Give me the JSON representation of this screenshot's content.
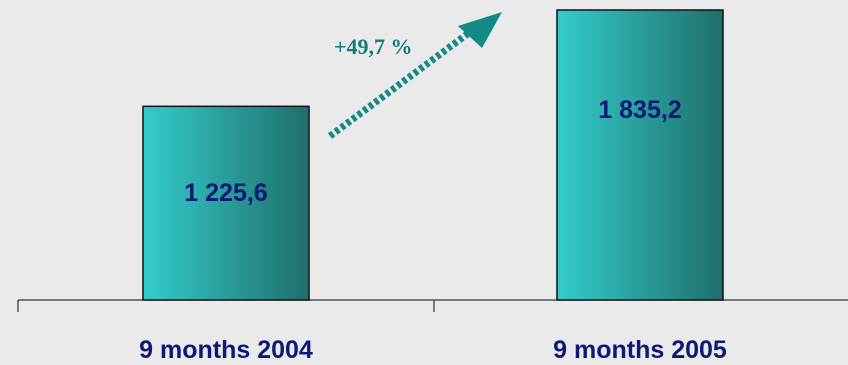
{
  "chart_data": {
    "type": "bar",
    "categories": [
      "9 months 2004",
      "9 months 2005"
    ],
    "values": [
      1225.6,
      1835.2
    ],
    "value_labels": [
      "1 225,6",
      "1 835,2"
    ],
    "annotation": "+49,7 %",
    "ylim": [
      0,
      1835.2
    ],
    "grid": false,
    "colors": {
      "bar_light": "#33cccc",
      "bar_dark": "#1f6f6b",
      "label": "#0b1a78",
      "arrow": "#138a87",
      "background": "#eaeaea"
    }
  }
}
